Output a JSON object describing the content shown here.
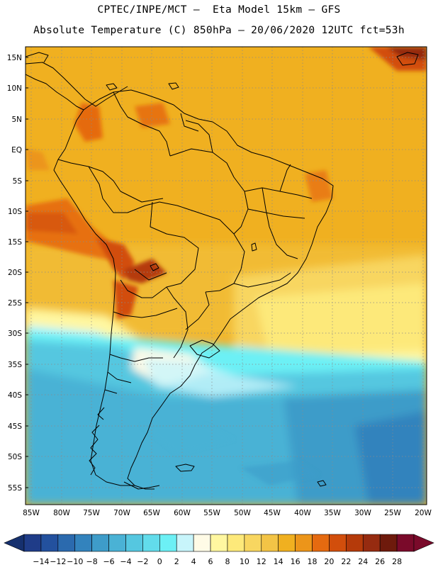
{
  "header": {
    "line1": "CPTEC/INPE/MCT —  Eta Model 15km — GFS",
    "line2": "Absolute Temperature (C) 850hPa — 20/06/2020 12UTC fct=53h"
  },
  "map": {
    "lat_labels": [
      "15N",
      "10N",
      "5N",
      "EQ",
      "5S",
      "10S",
      "15S",
      "20S",
      "25S",
      "30S",
      "35S",
      "40S",
      "45S",
      "50S",
      "55S"
    ],
    "lon_labels": [
      "85W",
      "80W",
      "75W",
      "70W",
      "65W",
      "60W",
      "55W",
      "50W",
      "45W",
      "40W",
      "35W",
      "30W",
      "25W",
      "20W"
    ],
    "lon_range": [
      -86,
      -19
    ],
    "lat_range": [
      17,
      -58
    ]
  },
  "colorbar": {
    "labels": [
      "-14",
      "-12",
      "-10",
      "-8",
      "-6",
      "-4",
      "-2",
      "0",
      "2",
      "4",
      "6",
      "8",
      "10",
      "12",
      "14",
      "16",
      "18",
      "20",
      "22",
      "24",
      "26",
      "28"
    ],
    "colors": [
      "#1f3c88",
      "#23519e",
      "#2b6aae",
      "#3383bd",
      "#3e9cc9",
      "#4ab2d5",
      "#55c7e0",
      "#62dceb",
      "#6cf0f5",
      "#c8f5fb",
      "#fffbe6",
      "#fff7a0",
      "#fde97a",
      "#f8d660",
      "#f3c446",
      "#f0b020",
      "#ec951a",
      "#e56a10",
      "#d24e0c",
      "#b53a0a",
      "#962b10",
      "#6e1a0c",
      "#7a0a2a"
    ],
    "left_arrow_color": "#16306e",
    "right_arrow_color": "#7a0a2a"
  }
}
